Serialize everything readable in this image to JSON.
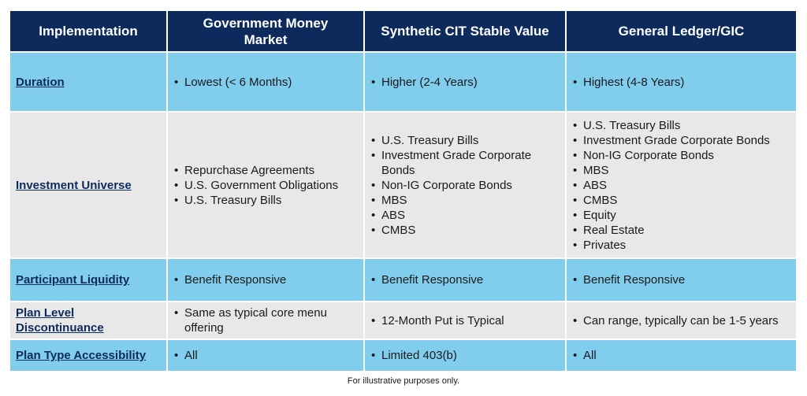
{
  "header": {
    "col0": "Implementation",
    "col1": "Government Money Market",
    "col2": "Synthetic CIT Stable Value",
    "col3": "General Ledger/GIC"
  },
  "rows": [
    {
      "label": "Duration",
      "gmm": [
        "Lowest (< 6 Months)"
      ],
      "cit": [
        "Higher (2-4 Years)"
      ],
      "gl": [
        "Highest (4-8 Years)"
      ]
    },
    {
      "label": "Investment Universe",
      "gmm": [
        "Repurchase Agreements",
        "U.S. Government Obligations",
        "U.S. Treasury Bills"
      ],
      "cit": [
        "U.S. Treasury Bills",
        "Investment Grade Corporate Bonds",
        "Non-IG Corporate Bonds",
        "MBS",
        "ABS",
        "CMBS"
      ],
      "gl": [
        "U.S. Treasury Bills",
        "Investment Grade Corporate Bonds",
        "Non-IG Corporate Bonds",
        "MBS",
        "ABS",
        "CMBS",
        "Equity",
        "Real Estate",
        "Privates"
      ]
    },
    {
      "label": "Participant Liquidity",
      "gmm": [
        "Benefit Responsive"
      ],
      "cit": [
        "Benefit Responsive"
      ],
      "gl": [
        "Benefit Responsive"
      ]
    },
    {
      "label": "Plan Level Discontinuance",
      "gmm": [
        "Same as typical core menu offering"
      ],
      "cit": [
        "12-Month Put is Typical"
      ],
      "gl": [
        "Can range, typically can be 1-5 years"
      ]
    },
    {
      "label": "Plan Type Accessibility",
      "gmm": [
        "All"
      ],
      "cit": [
        "Limited 403(b)"
      ],
      "gl": [
        "All"
      ]
    }
  ],
  "footnote": "For illustrative purposes only.",
  "colors": {
    "header_bg": "#0c2a5b",
    "blue_row": "#80cdee",
    "grey_row": "#e8e8e8",
    "label_text": "#0d2a5c"
  }
}
